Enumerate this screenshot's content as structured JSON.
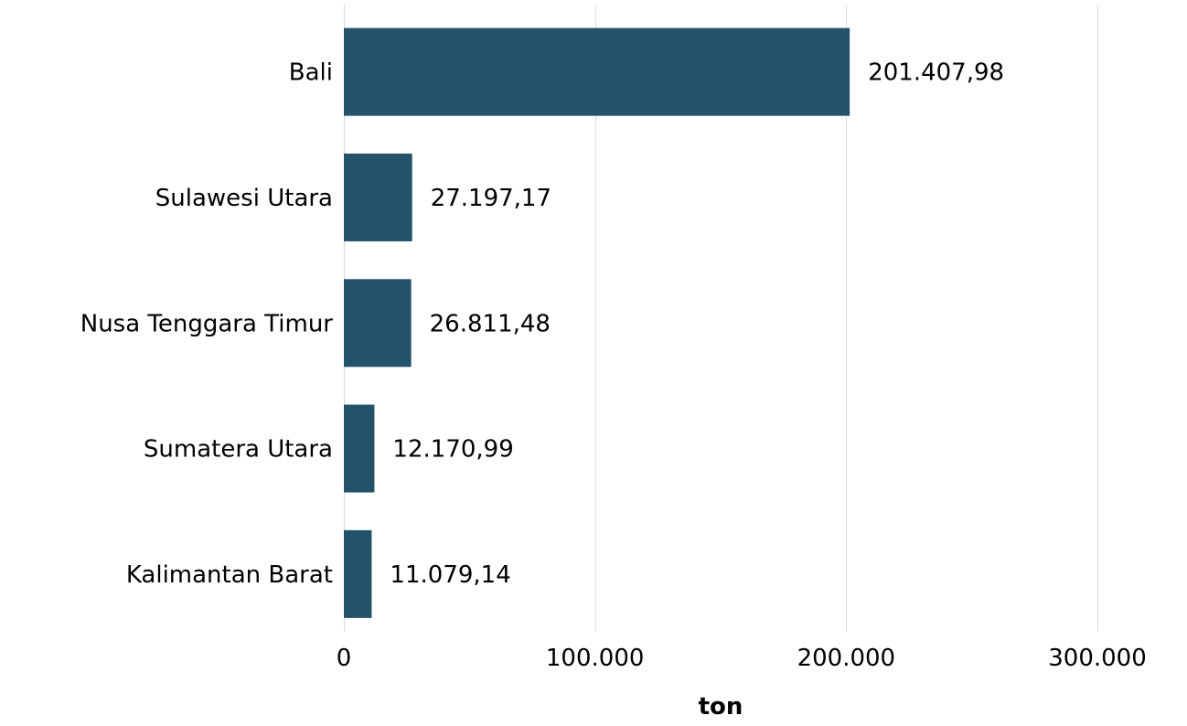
{
  "chart_data": {
    "type": "bar",
    "orientation": "horizontal",
    "categories": [
      "Bali",
      "Sulawesi Utara",
      "Nusa Tenggara Timur",
      "Sumatera Utara",
      "Kalimantan Barat"
    ],
    "values": [
      201407.98,
      27197.17,
      26811.48,
      12170.99,
      11079.14
    ],
    "value_labels": [
      "201.407,98",
      "27.197,17",
      "26.811,48",
      "12.170,99",
      "11.079,14"
    ],
    "xlim": [
      0,
      300000
    ],
    "x_ticks": [
      0,
      100000,
      200000,
      300000
    ],
    "x_tick_labels": [
      "0",
      "100.000",
      "200.000",
      "300.000"
    ],
    "xlabel": "ton",
    "grid": "vertical",
    "bar_color": "#23536a"
  }
}
